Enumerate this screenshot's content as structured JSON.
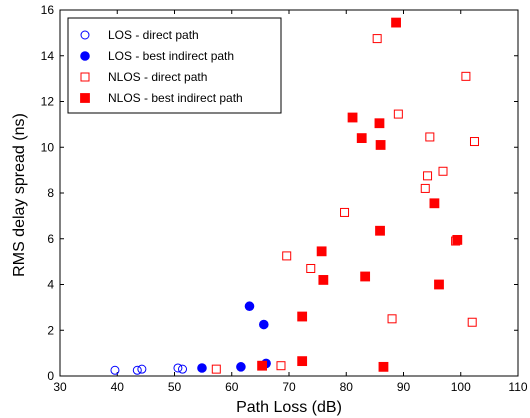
{
  "chart_data": {
    "type": "scatter",
    "xlabel": "Path Loss (dB)",
    "ylabel": "RMS delay spread (ns)",
    "xlim": [
      30,
      110
    ],
    "ylim": [
      0,
      16
    ],
    "xticks": [
      30,
      40,
      50,
      60,
      70,
      80,
      90,
      100,
      110
    ],
    "yticks": [
      0,
      2,
      4,
      6,
      8,
      10,
      12,
      14,
      16
    ],
    "grid": false,
    "legend_position": "top-left",
    "series": [
      {
        "name": "LOS - direct path",
        "marker": "circle",
        "filled": false,
        "color": "#0000ff",
        "points": [
          [
            39.6,
            0.25
          ],
          [
            43.5,
            0.25
          ],
          [
            44.3,
            0.3
          ],
          [
            50.6,
            0.35
          ],
          [
            51.4,
            0.3
          ]
        ]
      },
      {
        "name": "LOS - best indirect path",
        "marker": "circle",
        "filled": true,
        "color": "#0000ff",
        "points": [
          [
            54.8,
            0.35
          ],
          [
            61.6,
            0.4
          ],
          [
            63.1,
            3.05
          ],
          [
            65.6,
            2.25
          ],
          [
            66.0,
            0.55
          ]
        ]
      },
      {
        "name": "NLOS - direct path",
        "marker": "square",
        "filled": false,
        "color": "#ff0000",
        "points": [
          [
            57.3,
            0.3
          ],
          [
            68.6,
            0.45
          ],
          [
            69.6,
            5.25
          ],
          [
            73.8,
            4.7
          ],
          [
            79.7,
            7.15
          ],
          [
            85.4,
            14.75
          ],
          [
            88.0,
            2.5
          ],
          [
            89.1,
            11.45
          ],
          [
            93.8,
            8.2
          ],
          [
            94.2,
            8.75
          ],
          [
            94.6,
            10.45
          ],
          [
            96.9,
            8.95
          ],
          [
            99.1,
            5.9
          ],
          [
            100.9,
            13.1
          ],
          [
            102.0,
            2.35
          ],
          [
            102.4,
            10.25
          ]
        ]
      },
      {
        "name": "NLOS - best indirect path",
        "marker": "square",
        "filled": true,
        "color": "#ff0000",
        "points": [
          [
            65.3,
            0.45
          ],
          [
            72.3,
            0.65
          ],
          [
            72.3,
            2.6
          ],
          [
            75.7,
            5.45
          ],
          [
            76.0,
            4.2
          ],
          [
            81.1,
            11.3
          ],
          [
            82.7,
            10.4
          ],
          [
            83.3,
            4.35
          ],
          [
            85.8,
            11.05
          ],
          [
            86.0,
            10.1
          ],
          [
            85.9,
            6.35
          ],
          [
            86.5,
            0.4
          ],
          [
            88.7,
            15.45
          ],
          [
            95.4,
            7.55
          ],
          [
            96.2,
            4.0
          ],
          [
            99.4,
            5.95
          ]
        ]
      }
    ]
  }
}
